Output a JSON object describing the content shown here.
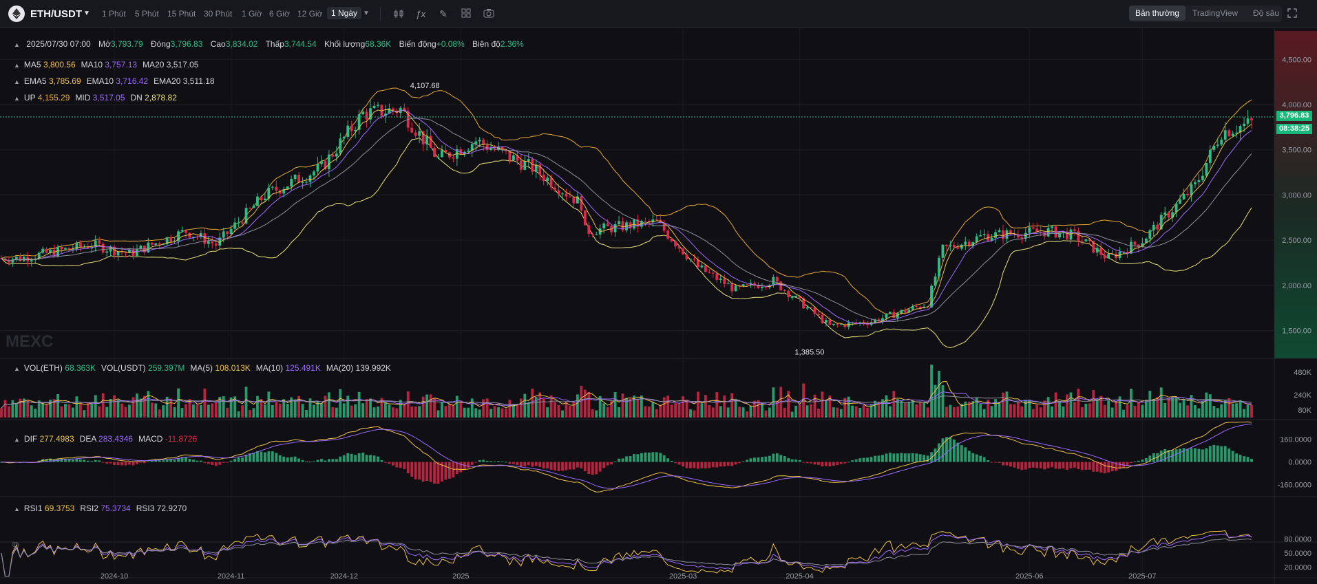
{
  "toolbar": {
    "pair": "ETH/USDT",
    "timeframes": [
      "1 Phút",
      "5 Phút",
      "15 Phút",
      "30 Phút",
      "1 Giờ",
      "6 Giờ",
      "12 Giờ",
      "1 Ngày"
    ],
    "active_timeframe": "1 Ngày",
    "modes": [
      "Bản thường",
      "TradingView",
      "Độ sâu"
    ],
    "active_mode": "Bản thường",
    "icons": [
      "candle-type-icon",
      "indicator-fx-icon",
      "draw-pen-icon",
      "layout-grid-icon",
      "camera-icon",
      "fullscreen-icon"
    ]
  },
  "ohlc": {
    "date": "2025/07/30 07:00",
    "open_label": "Mở",
    "open": "3,793.79",
    "close_label": "Đóng",
    "close": "3,796.83",
    "high_label": "Cao",
    "high": "3,834.02",
    "low_label": "Thấp",
    "low": "3,744.54",
    "volume_label": "Khối lượng",
    "volume": "68.36K",
    "change_label": "Biến động",
    "change": "+0.08%",
    "amplitude_label": "Biên độ",
    "amplitude": "2.36%"
  },
  "ma": {
    "ma5": "3,800.56",
    "ma10": "3,757.13",
    "ma20": "3,517.05"
  },
  "ema": {
    "ema5": "3,785.69",
    "ema10": "3,716.42",
    "ema20": "3,511.18"
  },
  "boll": {
    "up": "4,155.29",
    "mid": "3,517.05",
    "dn": "2,878.82"
  },
  "volume_legend": {
    "vol_eth_label": "VOL(ETH)",
    "vol_eth": "68.363K",
    "vol_usdt_label": "VOL(USDT)",
    "vol_usdt": "259.397M",
    "ma5": "108.013K",
    "ma10": "125.491K",
    "ma20": "139.992K"
  },
  "macd_legend": {
    "dif": "277.4983",
    "dea": "283.4346",
    "macd": "-11.8726"
  },
  "rsi_legend": {
    "rsi1": "69.3753",
    "rsi2": "75.3734",
    "rsi3": "72.9270"
  },
  "last_price": {
    "price": "3,796.83",
    "countdown": "08:38:25"
  },
  "watermark": "MEXC",
  "colors": {
    "up": "#2ebd85",
    "down": "#e0294a",
    "ma5": "#f0c049",
    "ma10": "#9c6bff",
    "ma20": "#c8c8c8",
    "boll": "#e8a838",
    "dn": "#e8e07a"
  },
  "chart_data": [
    {
      "type": "candlestick",
      "title": "ETH/USDT 1 Ngày",
      "x_tick_labels": [
        "2024-10",
        "2024-11",
        "2024-12",
        "2025",
        "2025-03",
        "2025-04",
        "2025-06",
        "2025-07"
      ],
      "y_tick_labels": [
        "4,500.00",
        "4,000.00",
        "3,500.00",
        "3,000.00",
        "2,500.00",
        "2,000.00",
        "1,500.00"
      ],
      "ylim": [
        1200,
        4700
      ],
      "annotations": [
        {
          "label": "4,107.68",
          "x": "2024-12-16",
          "value": 4107.68
        },
        {
          "label": "1,385.50",
          "x": "2025-04-09",
          "value": 1385.5
        }
      ],
      "close_trajectory": {
        "x": [
          "2024-09-06",
          "2024-09-25",
          "2024-10-05",
          "2024-10-20",
          "2024-10-28",
          "2024-11-10",
          "2024-11-25",
          "2024-12-06",
          "2024-12-16",
          "2024-12-26",
          "2025-01-05",
          "2025-01-20",
          "2025-02-02",
          "2025-02-03",
          "2025-02-22",
          "2025-03-05",
          "2025-03-15",
          "2025-03-25",
          "2025-04-09",
          "2025-04-20",
          "2025-05-05",
          "2025-05-09",
          "2025-05-20",
          "2025-06-06",
          "2025-06-13",
          "2025-06-22",
          "2025-07-01",
          "2025-07-15",
          "2025-07-22",
          "2025-07-30"
        ],
        "values": [
          2300,
          2450,
          2350,
          2600,
          2450,
          3000,
          3300,
          3900,
          3950,
          3400,
          3600,
          3300,
          2900,
          2600,
          2700,
          2200,
          1950,
          2050,
          1550,
          1600,
          1800,
          2400,
          2550,
          2600,
          2550,
          2300,
          2500,
          3100,
          3700,
          3796.83
        ]
      }
    },
    {
      "type": "bar",
      "title": "VOL",
      "y_tick_labels": [
        "480K",
        "240K",
        "80K"
      ],
      "ylim": [
        0,
        560000
      ]
    },
    {
      "type": "bar",
      "title": "MACD",
      "y_tick_labels": [
        "160.0000",
        "0.0000",
        "-160.0000"
      ],
      "ylim": [
        -230,
        250
      ]
    },
    {
      "type": "line",
      "title": "RSI",
      "y_tick_labels": [
        "80.0000",
        "50.0000",
        "20.0000"
      ],
      "ylim": [
        0,
        100
      ]
    }
  ]
}
